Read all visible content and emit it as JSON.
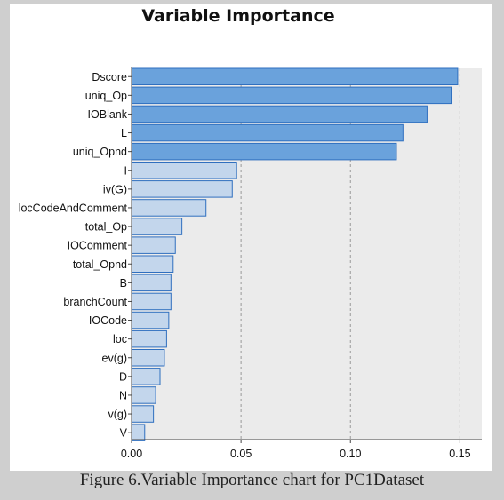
{
  "caption": "Figure 6.Variable Importance chart for PC1Dataset",
  "colors": {
    "plot_bg": "#ebebeb",
    "bar_top": "#6aa2dc",
    "bar_rest": "#c3d6ec",
    "bar_edge": "#2f6fbf",
    "grid": "#9a9a9a"
  },
  "chart_data": {
    "type": "bar",
    "orientation": "horizontal",
    "title": "Variable Importance",
    "xlabel": "",
    "ylabel": "",
    "xlim": [
      0.0,
      0.16
    ],
    "xticks": [
      "0.00",
      "0.05",
      "0.10",
      "0.15"
    ],
    "xtick_values": [
      0.0,
      0.05,
      0.1,
      0.15
    ],
    "grid": "vertical dashed at 0.05, 0.10, 0.15",
    "highlight_top_n": 5,
    "categories": [
      "Dscore",
      "uniq_Op",
      "IOBlank",
      "L",
      "uniq_Opnd",
      "I",
      "iv(G)",
      "locCodeAndComment",
      "total_Op",
      "IOComment",
      "total_Opnd",
      "B",
      "branchCount",
      "IOCode",
      "loc",
      "ev(g)",
      "D",
      "N",
      "v(g)",
      "V"
    ],
    "values": [
      0.149,
      0.146,
      0.135,
      0.124,
      0.121,
      0.048,
      0.046,
      0.034,
      0.023,
      0.02,
      0.019,
      0.018,
      0.018,
      0.017,
      0.016,
      0.015,
      0.013,
      0.011,
      0.01,
      0.006
    ]
  }
}
